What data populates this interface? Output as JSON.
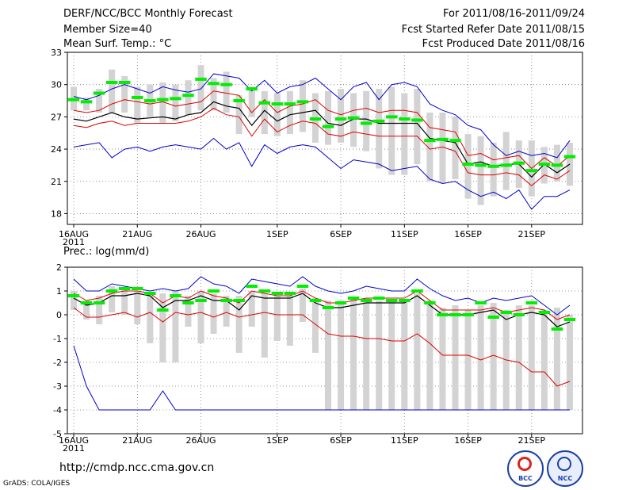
{
  "header": {
    "title": "DERF/NCC/BCC Monthly Forecast",
    "member_size": "Member Size=40",
    "variable": "Mean Surf. Temp.: °C",
    "period": "For 2011/08/16-2011/09/24",
    "refer_date": "Fcst Started Refer Date 2011/08/15",
    "produced_date": "Fcst Produced Date 2011/08/16"
  },
  "footer": {
    "url": "http://cmdp.ncc.cma.gov.cn",
    "credit": "GrADS: COLA/IGES",
    "logo_bcc": "BCC",
    "logo_ncc": "NCC"
  },
  "colors": {
    "mean": "#000000",
    "spread": "#dd0000",
    "extreme": "#0000cc",
    "observed": "#00ee00",
    "box": "#d3d3d3",
    "grid": "#777777"
  },
  "chart_data": [
    {
      "type": "line",
      "title": "Mean Surf. Temp.: °C",
      "ylim": [
        17,
        33
      ],
      "yticks": [
        18,
        21,
        24,
        27,
        30,
        33
      ],
      "x_tick_days": [
        1,
        6,
        11,
        17,
        22,
        27,
        32,
        37
      ],
      "x_tick_labels": [
        "16AUG",
        "21AUG",
        "26AUG",
        "1SEP",
        "6SEP",
        "11SEP",
        "16SEP",
        "21SEP"
      ],
      "x_year_label": "2011",
      "days": 40,
      "series": [
        {
          "name": "max",
          "values": [
            28.9,
            28.6,
            29.0,
            29.6,
            30.0,
            29.6,
            29.2,
            29.8,
            29.5,
            29.3,
            29.6,
            31.0,
            30.8,
            30.6,
            29.4,
            30.4,
            29.2,
            29.8,
            30.0,
            30.6,
            29.6,
            28.6,
            29.8,
            30.2,
            28.6,
            30.0,
            30.2,
            29.8,
            28.2,
            27.6,
            27.2,
            26.2,
            25.8,
            24.4,
            23.4,
            23.8,
            23.4,
            23.6,
            23.2,
            24.8
          ]
        },
        {
          "name": "spread_upper",
          "values": [
            27.6,
            27.4,
            27.6,
            28.2,
            28.6,
            28.4,
            28.2,
            28.4,
            28.0,
            28.2,
            28.4,
            29.4,
            29.2,
            29.0,
            27.4,
            28.6,
            27.4,
            28.0,
            28.2,
            28.6,
            27.6,
            27.2,
            27.6,
            27.8,
            27.4,
            27.6,
            27.6,
            27.4,
            26.0,
            25.8,
            25.6,
            23.4,
            23.6,
            23.0,
            23.2,
            23.4,
            22.2,
            23.2,
            22.4,
            23.4
          ]
        },
        {
          "name": "mean",
          "values": [
            26.8,
            26.6,
            27.0,
            27.4,
            27.0,
            26.8,
            26.9,
            27.0,
            26.8,
            27.2,
            27.4,
            28.4,
            28.0,
            27.8,
            26.2,
            27.6,
            26.6,
            27.2,
            27.4,
            27.6,
            26.4,
            26.2,
            26.8,
            26.8,
            26.4,
            26.4,
            26.4,
            26.4,
            25.0,
            24.8,
            24.6,
            22.6,
            22.8,
            22.4,
            22.6,
            22.6,
            21.4,
            22.6,
            21.8,
            22.6
          ]
        },
        {
          "name": "spread_lower",
          "values": [
            26.2,
            26.0,
            26.4,
            26.6,
            26.2,
            26.4,
            26.4,
            26.4,
            26.4,
            26.6,
            27.0,
            27.8,
            27.2,
            27.0,
            25.2,
            26.8,
            25.6,
            26.2,
            26.6,
            26.4,
            25.4,
            25.2,
            25.6,
            25.4,
            25.2,
            25.2,
            25.2,
            25.2,
            24.0,
            24.2,
            23.8,
            21.8,
            21.6,
            21.6,
            21.8,
            21.6,
            20.6,
            21.6,
            21.2,
            22.0
          ]
        },
        {
          "name": "min",
          "values": [
            24.2,
            24.4,
            24.6,
            23.2,
            24.0,
            24.2,
            23.8,
            24.2,
            24.4,
            24.2,
            24.0,
            25.0,
            24.0,
            24.6,
            22.4,
            24.4,
            23.6,
            24.2,
            24.4,
            24.2,
            23.2,
            22.2,
            23.0,
            22.8,
            22.6,
            22.0,
            22.2,
            22.4,
            21.2,
            20.8,
            21.0,
            20.2,
            19.6,
            20.0,
            19.4,
            20.2,
            18.4,
            19.6,
            19.6,
            20.2
          ]
        },
        {
          "name": "observed",
          "values": [
            28.6,
            28.4,
            29.2,
            30.2,
            30.2,
            28.8,
            28.5,
            28.6,
            28.7,
            29.0,
            30.5,
            30.1,
            30.0,
            28.5,
            29.6,
            28.3,
            28.2,
            28.2,
            28.4,
            26.8,
            26.1,
            26.8,
            26.9,
            26.4,
            26.6,
            27.0,
            26.8,
            26.7,
            24.8,
            24.9,
            24.8,
            22.6,
            22.5,
            22.4,
            22.5,
            22.7,
            22.0,
            22.6,
            22.5,
            23.3
          ]
        },
        {
          "name": "box_top",
          "values": [
            29.8,
            28.8,
            29.6,
            31.4,
            30.8,
            29.8,
            30.0,
            30.2,
            30.0,
            30.4,
            31.8,
            30.6,
            31.2,
            29.0,
            29.8,
            29.4,
            29.2,
            29.4,
            30.4,
            29.2,
            29.4,
            29.6,
            29.2,
            29.4,
            29.6,
            29.8,
            29.2,
            29.6,
            27.4,
            27.4,
            27.0,
            25.4,
            25.2,
            24.6,
            25.6,
            24.8,
            24.8,
            24.2,
            24.4,
            24.6
          ]
        },
        {
          "name": "box_bottom",
          "values": [
            27.6,
            27.6,
            27.4,
            27.4,
            27.4,
            26.4,
            27.0,
            26.4,
            26.6,
            27.2,
            27.6,
            27.6,
            27.4,
            25.4,
            27.0,
            25.4,
            25.2,
            25.4,
            25.6,
            24.6,
            24.4,
            24.6,
            24.2,
            23.8,
            22.2,
            21.6,
            21.6,
            22.6,
            21.0,
            20.8,
            21.2,
            19.4,
            18.8,
            19.6,
            20.2,
            20.4,
            19.6,
            20.8,
            21.0,
            20.6
          ]
        }
      ]
    },
    {
      "type": "line",
      "title": "Prec.: log(mm/d)",
      "ylim": [
        -5,
        2
      ],
      "yticks": [
        -5,
        -4,
        -3,
        -2,
        -1,
        0,
        1,
        2
      ],
      "x_tick_days": [
        1,
        6,
        11,
        17,
        22,
        27,
        32,
        37
      ],
      "x_tick_labels": [
        "16AUG",
        "21AUG",
        "26AUG",
        "1SEP",
        "6SEP",
        "11SEP",
        "16SEP",
        "21SEP"
      ],
      "x_year_label": "2011",
      "days": 40,
      "series": [
        {
          "name": "max",
          "values": [
            1.5,
            1.0,
            1.0,
            1.3,
            1.2,
            1.1,
            1.0,
            1.1,
            1.0,
            1.1,
            1.6,
            1.3,
            1.2,
            0.9,
            1.5,
            1.4,
            1.3,
            1.2,
            1.6,
            1.2,
            1.0,
            0.9,
            1.0,
            1.2,
            1.1,
            1.0,
            1.0,
            1.5,
            1.1,
            0.8,
            0.6,
            0.7,
            0.5,
            0.7,
            0.6,
            0.7,
            0.8,
            0.4,
            0.0,
            0.4
          ]
        },
        {
          "name": "spread_upper",
          "values": [
            0.9,
            0.6,
            0.7,
            0.9,
            1.0,
            1.0,
            0.9,
            0.5,
            0.8,
            0.7,
            1.0,
            0.8,
            0.7,
            0.5,
            1.0,
            0.9,
            0.8,
            0.8,
            1.0,
            0.7,
            0.5,
            0.5,
            0.6,
            0.7,
            0.7,
            0.7,
            0.7,
            1.0,
            0.6,
            0.2,
            0.2,
            0.2,
            0.2,
            0.3,
            0.1,
            0.2,
            0.3,
            0.2,
            -0.2,
            0.0
          ]
        },
        {
          "name": "mean",
          "values": [
            0.7,
            0.4,
            0.5,
            0.8,
            0.8,
            0.9,
            0.8,
            0.3,
            0.6,
            0.6,
            0.8,
            0.6,
            0.6,
            0.2,
            0.8,
            0.7,
            0.7,
            0.7,
            0.9,
            0.5,
            0.3,
            0.3,
            0.4,
            0.5,
            0.5,
            0.5,
            0.5,
            0.8,
            0.4,
            0.0,
            0.0,
            0.0,
            0.1,
            0.2,
            -0.2,
            0.0,
            0.1,
            0.0,
            -0.5,
            -0.3
          ]
        },
        {
          "name": "spread_lower",
          "values": [
            0.3,
            -0.1,
            -0.1,
            0.0,
            0.1,
            -0.1,
            0.1,
            -0.3,
            0.1,
            0.0,
            0.1,
            -0.1,
            0.1,
            -0.1,
            0.0,
            0.1,
            0.0,
            0.0,
            0.0,
            -0.4,
            -0.8,
            -0.9,
            -0.9,
            -1.0,
            -1.0,
            -1.1,
            -1.1,
            -0.8,
            -1.2,
            -1.7,
            -1.7,
            -1.7,
            -1.9,
            -1.7,
            -1.9,
            -2.0,
            -2.4,
            -2.4,
            -3.0,
            -2.8
          ]
        },
        {
          "name": "min",
          "values": [
            -1.3,
            -3.0,
            -4.0,
            -4.0,
            -4.0,
            -4.0,
            -4.0,
            -3.2,
            -4.0,
            -4.0,
            -4.0,
            -4.0,
            -4.0,
            -4.0,
            -4.0,
            -4.0,
            -4.0,
            -4.0,
            -4.0,
            -4.0,
            -4.0,
            -4.0,
            -4.0,
            -4.0,
            -4.0,
            -4.0,
            -4.0,
            -4.0,
            -4.0,
            -4.0,
            -4.0,
            -4.0,
            -4.0,
            -4.0,
            -4.0,
            -4.0,
            -4.0,
            -4.0,
            -4.0,
            -4.0
          ]
        },
        {
          "name": "observed",
          "values": [
            0.8,
            0.5,
            0.5,
            1.0,
            1.1,
            1.1,
            0.9,
            0.2,
            0.8,
            0.5,
            0.6,
            1.0,
            0.6,
            0.6,
            1.2,
            1.0,
            0.9,
            0.9,
            1.2,
            0.6,
            0.3,
            0.5,
            0.7,
            0.6,
            0.7,
            0.6,
            0.6,
            1.0,
            0.5,
            0.0,
            0.0,
            0.0,
            0.5,
            -0.1,
            0.1,
            0.0,
            0.5,
            0.1,
            -0.6,
            -0.2
          ]
        },
        {
          "name": "box_top",
          "values": [
            1.0,
            0.6,
            0.8,
            1.2,
            1.1,
            1.0,
            0.9,
            0.9,
            1.0,
            0.8,
            1.0,
            0.9,
            0.8,
            0.8,
            1.0,
            0.9,
            0.8,
            0.8,
            1.1,
            0.7,
            0.6,
            0.6,
            0.7,
            0.7,
            0.6,
            0.6,
            0.6,
            0.9,
            0.6,
            0.3,
            0.4,
            0.2,
            0.4,
            0.5,
            0.2,
            0.4,
            0.4,
            0.2,
            0.3,
            0.0
          ]
        },
        {
          "name": "box_bottom",
          "values": [
            0.2,
            -0.2,
            -0.4,
            0.1,
            0.0,
            -0.4,
            -1.2,
            -2.0,
            -2.0,
            -0.5,
            -1.2,
            -0.8,
            -0.5,
            -1.6,
            -0.5,
            -1.8,
            -1.1,
            -1.3,
            -0.3,
            -1.6,
            -4.0,
            -4.0,
            -4.0,
            -4.0,
            -4.0,
            -4.0,
            -4.0,
            -4.0,
            -4.0,
            -4.0,
            -4.0,
            -4.0,
            -4.0,
            -4.0,
            -4.0,
            -4.0,
            -4.0,
            -4.0,
            -4.0,
            -4.0
          ]
        }
      ]
    }
  ]
}
